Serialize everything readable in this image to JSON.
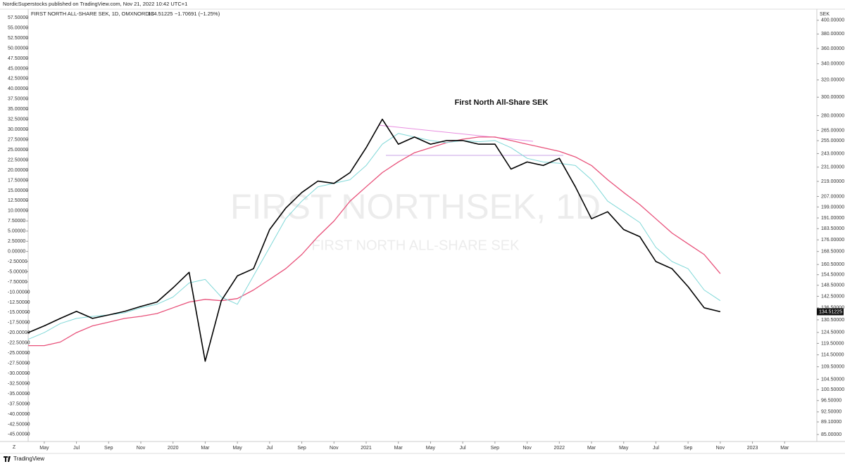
{
  "publisher": "NordicSuperstocks published on TradingView.com, Nov 21, 2022 10:42 UTC+1",
  "symbol": "FIRST NORTH ALL-SHARE SEK, 1D, OMXNORDIC",
  "change": "−1.70691 (−1.25%)",
  "currency": "SEK",
  "timezone_button": "Z",
  "brand": "TradingView",
  "chart_data": {
    "type": "line",
    "title": "First North All-Share SEK",
    "watermark": "FIRST NORTHSEK, 1D",
    "watermark_subtitle": "FIRST NORTH ALL-SHARE SEK",
    "ylog": true,
    "grid": false,
    "x": [
      "2019-04",
      "2019-05",
      "2019-06",
      "2019-07",
      "2019-08",
      "2019-09",
      "2019-10",
      "2019-11",
      "2019-12",
      "2020-01",
      "2020-02",
      "2020-03",
      "2020-04",
      "2020-05",
      "2020-06",
      "2020-07",
      "2020-08",
      "2020-09",
      "2020-10",
      "2020-11",
      "2020-12",
      "2021-01",
      "2021-02",
      "2021-03",
      "2021-04",
      "2021-05",
      "2021-06",
      "2021-07",
      "2021-08",
      "2021-09",
      "2021-10",
      "2021-11",
      "2021-12",
      "2022-01",
      "2022-02",
      "2022-03",
      "2022-04",
      "2022-05",
      "2022-06",
      "2022-07",
      "2022-08",
      "2022-09",
      "2022-10",
      "2022-11"
    ],
    "xlim": [
      "2019-04",
      "2023-05"
    ],
    "xticks": [
      {
        "value": "2019-05",
        "label": "May"
      },
      {
        "value": "2019-07",
        "label": "Jul"
      },
      {
        "value": "2019-09",
        "label": "Sep"
      },
      {
        "value": "2019-11",
        "label": "Nov"
      },
      {
        "value": "2020-01",
        "label": "2020"
      },
      {
        "value": "2020-03",
        "label": "Mar"
      },
      {
        "value": "2020-05",
        "label": "May"
      },
      {
        "value": "2020-07",
        "label": "Jul"
      },
      {
        "value": "2020-09",
        "label": "Sep"
      },
      {
        "value": "2020-11",
        "label": "Nov"
      },
      {
        "value": "2021-01",
        "label": "2021"
      },
      {
        "value": "2021-03",
        "label": "Mar"
      },
      {
        "value": "2021-05",
        "label": "May"
      },
      {
        "value": "2021-07",
        "label": "Jul"
      },
      {
        "value": "2021-09",
        "label": "Sep"
      },
      {
        "value": "2021-11",
        "label": "Nov"
      },
      {
        "value": "2022-01",
        "label": "2022"
      },
      {
        "value": "2022-03",
        "label": "Mar"
      },
      {
        "value": "2022-05",
        "label": "May"
      },
      {
        "value": "2022-07",
        "label": "Jul"
      },
      {
        "value": "2022-09",
        "label": "Sep"
      },
      {
        "value": "2022-11",
        "label": "Nov"
      },
      {
        "value": "2023-01",
        "label": "2023"
      },
      {
        "value": "2023-03",
        "label": "Mar"
      }
    ],
    "ylim": [
      82.8,
      417
    ],
    "yticks": [
      {
        "value": 85,
        "label": "85.00000"
      },
      {
        "value": 89.1,
        "label": "89.10000"
      },
      {
        "value": 92.5,
        "label": "92.50000"
      },
      {
        "value": 96.5,
        "label": "96.50000"
      },
      {
        "value": 100.5,
        "label": "100.50000"
      },
      {
        "value": 104.5,
        "label": "104.50000"
      },
      {
        "value": 109.5,
        "label": "109.50000"
      },
      {
        "value": 114.5,
        "label": "114.50000"
      },
      {
        "value": 119.5,
        "label": "119.50000"
      },
      {
        "value": 124.5,
        "label": "124.50000"
      },
      {
        "value": 130.5,
        "label": "130.50000"
      },
      {
        "value": 136.5,
        "label": "136.50000"
      },
      {
        "value": 142.5,
        "label": "142.50000"
      },
      {
        "value": 148.5,
        "label": "148.50000"
      },
      {
        "value": 154.5,
        "label": "154.50000"
      },
      {
        "value": 160.5,
        "label": "160.50000"
      },
      {
        "value": 168.5,
        "label": "168.50000"
      },
      {
        "value": 176,
        "label": "176.00000"
      },
      {
        "value": 183.5,
        "label": "183.50000"
      },
      {
        "value": 191,
        "label": "191.00000"
      },
      {
        "value": 199,
        "label": "199.00000"
      },
      {
        "value": 207,
        "label": "207.00000"
      },
      {
        "value": 219,
        "label": "219.00000"
      },
      {
        "value": 231,
        "label": "231.00000"
      },
      {
        "value": 243,
        "label": "243.00000"
      },
      {
        "value": 255,
        "label": "255.00000"
      },
      {
        "value": 265,
        "label": "265.00000"
      },
      {
        "value": 280,
        "label": "280.00000"
      },
      {
        "value": 300,
        "label": "300.00000"
      },
      {
        "value": 320,
        "label": "320.00000"
      },
      {
        "value": 340,
        "label": "340.00000"
      },
      {
        "value": 360,
        "label": "360.00000"
      },
      {
        "value": 380,
        "label": "380.00000"
      },
      {
        "value": 400,
        "label": "400.00000"
      }
    ],
    "y2lim": [
      -46.75,
      59.6
    ],
    "y2ticks": [
      {
        "value": 57.5,
        "label": "57.50000"
      },
      {
        "value": 55,
        "label": "55.00000"
      },
      {
        "value": 52.5,
        "label": "52.50000"
      },
      {
        "value": 50,
        "label": "50.00000"
      },
      {
        "value": 47.5,
        "label": "47.50000"
      },
      {
        "value": 45,
        "label": "45.00000"
      },
      {
        "value": 42.5,
        "label": "42.50000"
      },
      {
        "value": 40,
        "label": "40.00000"
      },
      {
        "value": 37.5,
        "label": "37.50000"
      },
      {
        "value": 35,
        "label": "35.00000"
      },
      {
        "value": 32.5,
        "label": "32.50000"
      },
      {
        "value": 30,
        "label": "30.00000"
      },
      {
        "value": 27.5,
        "label": "27.50000"
      },
      {
        "value": 25,
        "label": "25.00000"
      },
      {
        "value": 22.5,
        "label": "22.50000"
      },
      {
        "value": 20,
        "label": "20.00000"
      },
      {
        "value": 17.5,
        "label": "17.50000"
      },
      {
        "value": 15,
        "label": "15.00000"
      },
      {
        "value": 12.5,
        "label": "12.50000"
      },
      {
        "value": 10,
        "label": "10.00000"
      },
      {
        "value": 7.5,
        "label": "7.50000"
      },
      {
        "value": 5,
        "label": "5.00000"
      },
      {
        "value": 2.5,
        "label": "2.50000"
      },
      {
        "value": 0,
        "label": "0.00000"
      },
      {
        "value": -2.5,
        "label": "-2.50000"
      },
      {
        "value": -5,
        "label": "-5.00000"
      },
      {
        "value": -7.5,
        "label": "-7.50000"
      },
      {
        "value": -10,
        "label": "-10.00000"
      },
      {
        "value": -12.5,
        "label": "-12.50000"
      },
      {
        "value": -15,
        "label": "-15.00000"
      },
      {
        "value": -17.5,
        "label": "-17.50000"
      },
      {
        "value": -20,
        "label": "-20.00000"
      },
      {
        "value": -22.5,
        "label": "-22.50000"
      },
      {
        "value": -25,
        "label": "-25.00000"
      },
      {
        "value": -27.5,
        "label": "-27.50000"
      },
      {
        "value": -30,
        "label": "-30.00000"
      },
      {
        "value": -32.5,
        "label": "-32.50000"
      },
      {
        "value": -35,
        "label": "-35.00000"
      },
      {
        "value": -37.5,
        "label": "-37.50000"
      },
      {
        "value": -40,
        "label": "-40.00000"
      },
      {
        "value": -42.5,
        "label": "-42.50000"
      },
      {
        "value": -45,
        "label": "-45.00000"
      }
    ],
    "series": [
      {
        "name": "FIRST NORTH ALL-SHARE SEK",
        "color": "#000000",
        "width": 1.6,
        "values": [
          124.4,
          127.6,
          131.2,
          134.7,
          131.2,
          132.9,
          134.7,
          137.2,
          139.5,
          147.1,
          155.9,
          111.8,
          140.2,
          153.8,
          158,
          182.9,
          198.1,
          210.1,
          219.2,
          217.4,
          226.3,
          248.4,
          276.3,
          251.7,
          258.5,
          251.7,
          255.1,
          255.1,
          251.7,
          251.7,
          229.3,
          235.5,
          232.4,
          238.7,
          214.6,
          190.4,
          195.5,
          182.9,
          178.1,
          162.3,
          158,
          147.8,
          136.5,
          134.51225
        ]
      },
      {
        "color": "#80d8d8",
        "width": 1,
        "values": [
          121.3,
          124.4,
          128.7,
          131.2,
          132.2,
          132.9,
          134,
          136.5,
          138.3,
          142.1,
          149.8,
          151.8,
          142.1,
          138.3,
          153.8,
          171.1,
          190.4,
          203.4,
          214.6,
          217.4,
          220.4,
          232.4,
          251.7,
          262,
          258.5,
          255.1,
          253.1,
          255.1,
          254,
          255.1,
          248.4,
          238.7,
          235.5,
          234.3,
          232.4,
          220.4,
          203.4,
          195.5,
          187.8,
          171.1,
          162.3,
          158,
          145.9,
          140.2
        ]
      },
      {
        "color": "#e8517a",
        "width": 1.3,
        "values": [
          118.5,
          118.5,
          120.1,
          124.4,
          127.6,
          129.4,
          131.2,
          132.2,
          133.6,
          136.5,
          139.5,
          140.9,
          140.2,
          141.3,
          145.9,
          151.8,
          158,
          166.6,
          178.1,
          188.8,
          203.4,
          214.6,
          226.3,
          235.5,
          243.8,
          248.4,
          253.1,
          256.4,
          258.5,
          258.5,
          255.1,
          251.7,
          248.4,
          245.1,
          240,
          232.4,
          220.4,
          210.1,
          200.8,
          190.4,
          180.5,
          173.4,
          166.6,
          155.1
        ]
      }
    ]
  }
}
